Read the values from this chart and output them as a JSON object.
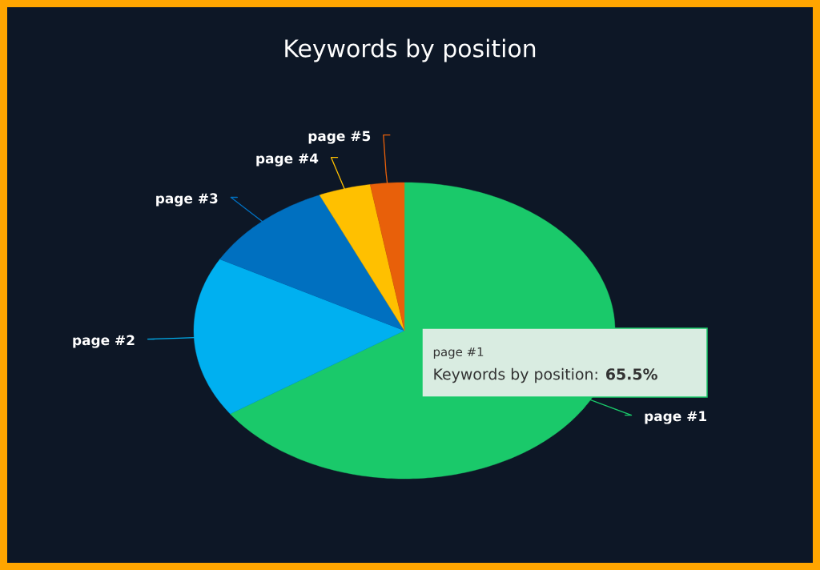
{
  "chart_data": {
    "type": "pie",
    "title": "Keywords by position",
    "categories": [
      "page #1",
      "page #2",
      "page #3",
      "page #4",
      "page #5"
    ],
    "values": [
      65.5,
      17.5,
      10.4,
      4.0,
      2.6
    ],
    "colors": [
      "#1ac96a",
      "#00b0f0",
      "#0070c0",
      "#ffc000",
      "#e8600a"
    ],
    "annotations": [
      "page #1",
      "Keywords by position: **65.5%**"
    ]
  }
}
